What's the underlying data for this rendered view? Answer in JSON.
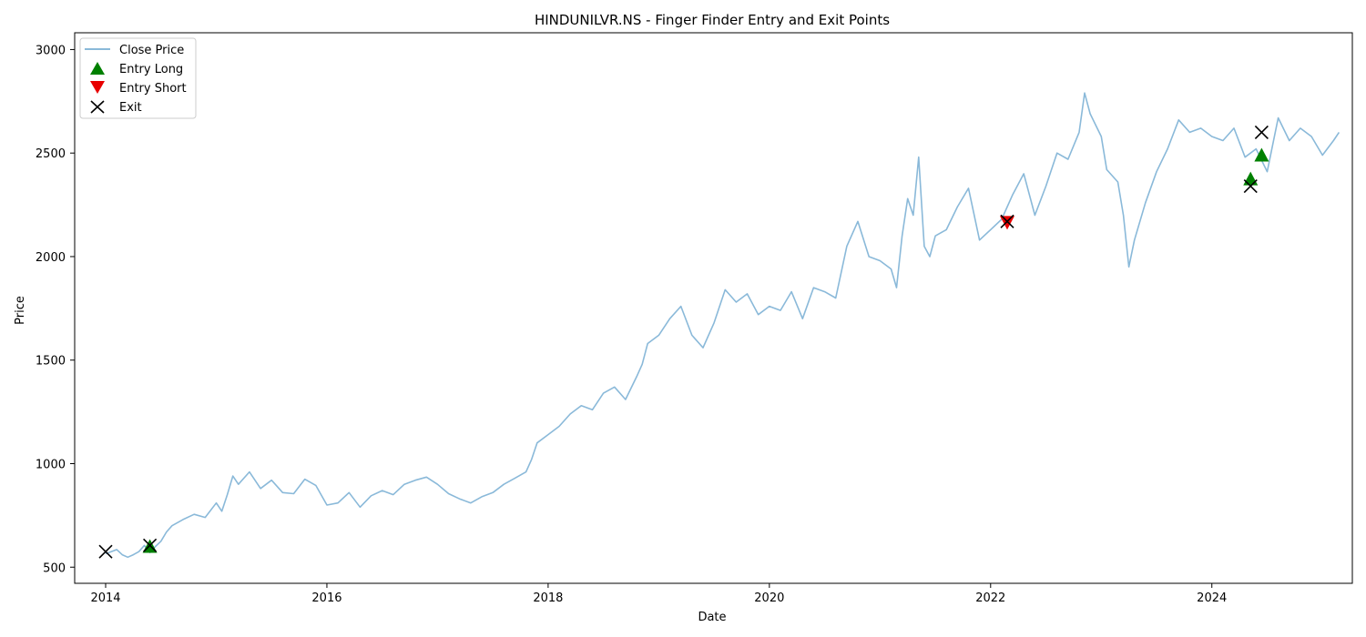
{
  "chart_data": {
    "type": "line",
    "title": "HINDUNILVR.NS - Finger Finder Entry and Exit Points",
    "xlabel": "Date",
    "ylabel": "Price",
    "xlim": [
      2013.72,
      2025.27
    ],
    "ylim": [
      422,
      3081
    ],
    "x_ticks": [
      2014,
      2016,
      2018,
      2020,
      2022,
      2024
    ],
    "x_tick_labels": [
      "2014",
      "2016",
      "2018",
      "2020",
      "2022",
      "2024"
    ],
    "y_ticks": [
      500,
      1000,
      1500,
      2000,
      2500,
      3000
    ],
    "y_tick_labels": [
      "500",
      "1000",
      "1500",
      "2000",
      "2500",
      "3000"
    ],
    "grid": false,
    "legend_position": "upper-left",
    "legend": [
      {
        "label": "Close Price",
        "marker": "line",
        "color": "#8ab9d9"
      },
      {
        "label": "Entry Long",
        "marker": "triangle-up",
        "color": "#008000"
      },
      {
        "label": "Entry Short",
        "marker": "triangle-down",
        "color": "#e80000"
      },
      {
        "label": "Exit",
        "marker": "x",
        "color": "#000000"
      }
    ],
    "series": [
      {
        "name": "Close Price",
        "color": "#8ab9d9",
        "points": [
          [
            2014.0,
            565
          ],
          [
            2014.05,
            575
          ],
          [
            2014.1,
            585
          ],
          [
            2014.15,
            560
          ],
          [
            2014.2,
            548
          ],
          [
            2014.25,
            560
          ],
          [
            2014.3,
            575
          ],
          [
            2014.35,
            605
          ],
          [
            2014.4,
            570
          ],
          [
            2014.45,
            600
          ],
          [
            2014.5,
            625
          ],
          [
            2014.55,
            670
          ],
          [
            2014.6,
            700
          ],
          [
            2014.7,
            730
          ],
          [
            2014.8,
            755
          ],
          [
            2014.9,
            740
          ],
          [
            2015.0,
            810
          ],
          [
            2015.05,
            770
          ],
          [
            2015.1,
            850
          ],
          [
            2015.15,
            940
          ],
          [
            2015.2,
            900
          ],
          [
            2015.3,
            960
          ],
          [
            2015.4,
            880
          ],
          [
            2015.5,
            920
          ],
          [
            2015.6,
            860
          ],
          [
            2015.7,
            855
          ],
          [
            2015.8,
            925
          ],
          [
            2015.9,
            895
          ],
          [
            2016.0,
            800
          ],
          [
            2016.1,
            810
          ],
          [
            2016.2,
            860
          ],
          [
            2016.3,
            790
          ],
          [
            2016.4,
            845
          ],
          [
            2016.5,
            870
          ],
          [
            2016.6,
            850
          ],
          [
            2016.7,
            900
          ],
          [
            2016.8,
            920
          ],
          [
            2016.9,
            935
          ],
          [
            2017.0,
            900
          ],
          [
            2017.1,
            855
          ],
          [
            2017.2,
            830
          ],
          [
            2017.3,
            810
          ],
          [
            2017.4,
            840
          ],
          [
            2017.5,
            860
          ],
          [
            2017.6,
            900
          ],
          [
            2017.7,
            930
          ],
          [
            2017.8,
            960
          ],
          [
            2017.85,
            1020
          ],
          [
            2017.9,
            1100
          ],
          [
            2018.0,
            1140
          ],
          [
            2018.1,
            1180
          ],
          [
            2018.2,
            1240
          ],
          [
            2018.3,
            1280
          ],
          [
            2018.4,
            1260
          ],
          [
            2018.5,
            1340
          ],
          [
            2018.6,
            1370
          ],
          [
            2018.7,
            1310
          ],
          [
            2018.8,
            1420
          ],
          [
            2018.85,
            1480
          ],
          [
            2018.9,
            1580
          ],
          [
            2019.0,
            1620
          ],
          [
            2019.1,
            1700
          ],
          [
            2019.2,
            1760
          ],
          [
            2019.3,
            1620
          ],
          [
            2019.4,
            1560
          ],
          [
            2019.5,
            1680
          ],
          [
            2019.6,
            1840
          ],
          [
            2019.7,
            1780
          ],
          [
            2019.8,
            1820
          ],
          [
            2019.9,
            1720
          ],
          [
            2020.0,
            1760
          ],
          [
            2020.1,
            1740
          ],
          [
            2020.2,
            1830
          ],
          [
            2020.3,
            1700
          ],
          [
            2020.4,
            1850
          ],
          [
            2020.5,
            1830
          ],
          [
            2020.6,
            1800
          ],
          [
            2020.7,
            2050
          ],
          [
            2020.8,
            2170
          ],
          [
            2020.9,
            2000
          ],
          [
            2021.0,
            1980
          ],
          [
            2021.1,
            1940
          ],
          [
            2021.15,
            1850
          ],
          [
            2021.2,
            2100
          ],
          [
            2021.25,
            2280
          ],
          [
            2021.3,
            2200
          ],
          [
            2021.35,
            2480
          ],
          [
            2021.4,
            2050
          ],
          [
            2021.45,
            2000
          ],
          [
            2021.5,
            2100
          ],
          [
            2021.6,
            2130
          ],
          [
            2021.7,
            2240
          ],
          [
            2021.8,
            2330
          ],
          [
            2021.9,
            2080
          ],
          [
            2022.0,
            2130
          ],
          [
            2022.1,
            2180
          ],
          [
            2022.2,
            2300
          ],
          [
            2022.3,
            2400
          ],
          [
            2022.4,
            2200
          ],
          [
            2022.5,
            2340
          ],
          [
            2022.6,
            2500
          ],
          [
            2022.7,
            2470
          ],
          [
            2022.8,
            2600
          ],
          [
            2022.85,
            2790
          ],
          [
            2022.9,
            2690
          ],
          [
            2023.0,
            2580
          ],
          [
            2023.05,
            2420
          ],
          [
            2023.15,
            2360
          ],
          [
            2023.2,
            2200
          ],
          [
            2023.25,
            1950
          ],
          [
            2023.3,
            2080
          ],
          [
            2023.4,
            2260
          ],
          [
            2023.5,
            2410
          ],
          [
            2023.6,
            2520
          ],
          [
            2023.7,
            2660
          ],
          [
            2023.8,
            2600
          ],
          [
            2023.9,
            2620
          ],
          [
            2024.0,
            2580
          ],
          [
            2024.1,
            2560
          ],
          [
            2024.2,
            2620
          ],
          [
            2024.3,
            2480
          ],
          [
            2024.4,
            2520
          ],
          [
            2024.5,
            2410
          ],
          [
            2024.6,
            2670
          ],
          [
            2024.7,
            2560
          ],
          [
            2024.8,
            2620
          ],
          [
            2024.9,
            2580
          ],
          [
            2025.0,
            2490
          ],
          [
            2025.1,
            2560
          ],
          [
            2025.15,
            2600
          ]
        ]
      }
    ],
    "entry_long": [
      [
        2014.4,
        600
      ],
      [
        2024.35,
        2375
      ],
      [
        2024.45,
        2490
      ]
    ],
    "entry_short": [
      [
        2022.15,
        2165
      ]
    ],
    "exit": [
      [
        2014.0,
        575
      ],
      [
        2014.4,
        605
      ],
      [
        2022.15,
        2170
      ],
      [
        2024.35,
        2340
      ],
      [
        2024.45,
        2600
      ]
    ]
  }
}
